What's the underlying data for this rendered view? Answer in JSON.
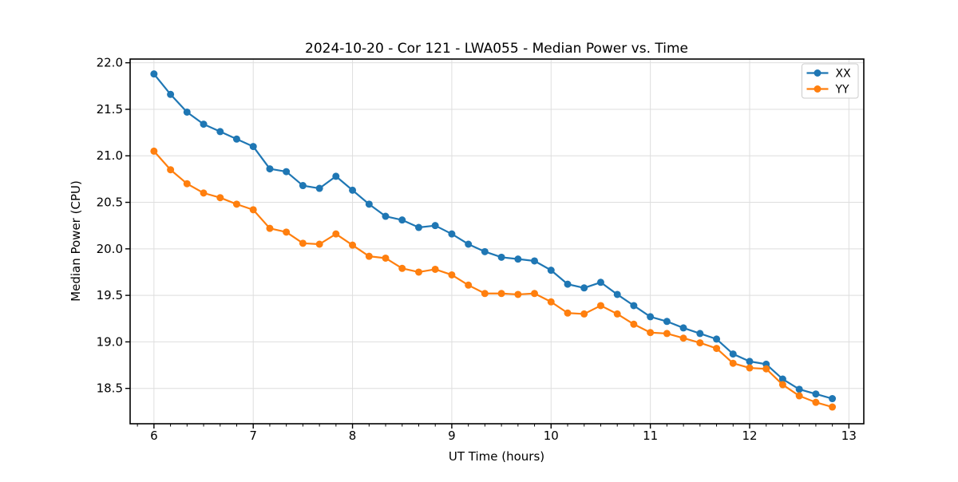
{
  "chart_data": {
    "type": "line",
    "title": "2024-10-20 - Cor 121 - LWA055 - Median Power vs. Time",
    "xlabel": "UT Time (hours)",
    "ylabel": "Median Power (CPU)",
    "xlim": [
      5.76,
      13.15
    ],
    "ylim": [
      18.12,
      22.04
    ],
    "grid": true,
    "legend_position": "upper right",
    "x_major_ticks": [
      6,
      7,
      8,
      9,
      10,
      11,
      12,
      13
    ],
    "x_tick_labels": [
      "6",
      "7",
      "8",
      "9",
      "10",
      "11",
      "12",
      "13"
    ],
    "x_minor_step": 0.16667,
    "y_major_ticks": [
      18.5,
      19.0,
      19.5,
      20.0,
      20.5,
      21.0,
      21.5,
      22.0
    ],
    "y_tick_labels": [
      "18.5",
      "19.0",
      "19.5",
      "20.0",
      "20.5",
      "21.0",
      "21.5",
      "22.0"
    ],
    "x": [
      6.0,
      6.167,
      6.333,
      6.5,
      6.667,
      6.833,
      7.0,
      7.167,
      7.333,
      7.5,
      7.667,
      7.833,
      8.0,
      8.167,
      8.333,
      8.5,
      8.667,
      8.833,
      9.0,
      9.167,
      9.333,
      9.5,
      9.667,
      9.833,
      10.0,
      10.167,
      10.333,
      10.5,
      10.667,
      10.833,
      11.0,
      11.167,
      11.333,
      11.5,
      11.667,
      11.833,
      12.0,
      12.167,
      12.333,
      12.5,
      12.667,
      12.833
    ],
    "series": [
      {
        "name": "XX",
        "color": "#1f77b4",
        "values": [
          21.88,
          21.66,
          21.47,
          21.34,
          21.26,
          21.18,
          21.1,
          20.86,
          20.83,
          20.68,
          20.65,
          20.78,
          20.63,
          20.48,
          20.35,
          20.31,
          20.23,
          20.25,
          20.16,
          20.05,
          19.97,
          19.91,
          19.89,
          19.87,
          19.77,
          19.62,
          19.58,
          19.64,
          19.51,
          19.39,
          19.27,
          19.22,
          19.15,
          19.09,
          19.03,
          18.87,
          18.79,
          18.76,
          18.6,
          18.49,
          18.44,
          18.39
        ]
      },
      {
        "name": "YY",
        "color": "#ff7f0e",
        "values": [
          21.05,
          20.85,
          20.7,
          20.6,
          20.55,
          20.48,
          20.42,
          20.22,
          20.18,
          20.06,
          20.05,
          20.16,
          20.04,
          19.92,
          19.9,
          19.79,
          19.75,
          19.78,
          19.72,
          19.61,
          19.52,
          19.52,
          19.51,
          19.52,
          19.43,
          19.31,
          19.3,
          19.39,
          19.3,
          19.19,
          19.1,
          19.09,
          19.04,
          18.99,
          18.93,
          18.77,
          18.72,
          18.71,
          18.54,
          18.42,
          18.35,
          18.3
        ]
      }
    ]
  }
}
